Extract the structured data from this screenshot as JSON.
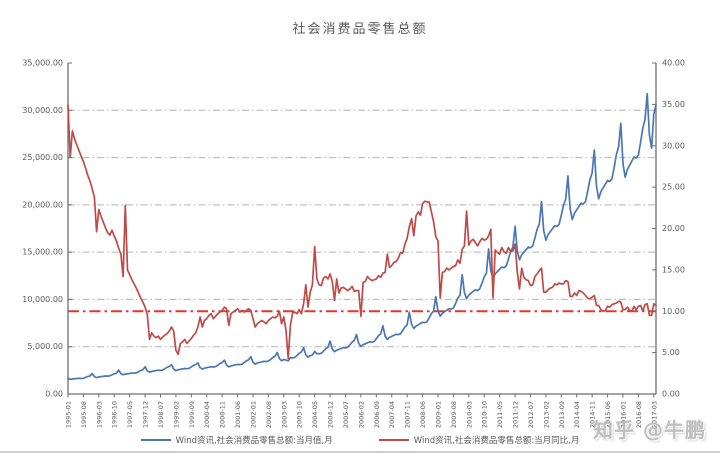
{
  "page": {
    "watermark": "知乎 @牛鹏"
  },
  "chart_data": {
    "type": "line",
    "title": "社会消费品零售总额",
    "x_start": "1995-01",
    "x_interval": "monthly",
    "x_tick_labels": [
      "1995-01",
      "1995-08",
      "1996-03",
      "1996-10",
      "1997-05",
      "1997-12",
      "1998-07",
      "1999-02",
      "1999-09",
      "2000-04",
      "2000-11",
      "2001-06",
      "2002-01",
      "2002-08",
      "2003-03",
      "2003-10",
      "2004-05",
      "2004-12",
      "2005-07",
      "2006-02",
      "2006-09",
      "2007-04",
      "2007-11",
      "2008-06",
      "2009-01",
      "2009-08",
      "2010-03",
      "2010-10",
      "2011-05",
      "2011-12",
      "2012-07",
      "2013-02",
      "2013-09",
      "2014-04",
      "2014-11",
      "2015-06",
      "2016-01",
      "2016-08",
      "2017-03"
    ],
    "left_axis": {
      "min": 0,
      "max": 35000,
      "step": 5000,
      "label_values": [
        "35,000.00",
        "30,000.00",
        "25,000.00",
        "20,000.00",
        "15,000.00",
        "10,000.00",
        "5,000.00",
        "0.00"
      ]
    },
    "right_axis": {
      "min": 0,
      "max": 40,
      "step": 5,
      "label_values": [
        "40.00",
        "35.00",
        "30.00",
        "25.00",
        "20.00",
        "15.00",
        "10.00",
        "5.00",
        "0.00"
      ]
    },
    "grid": "horizontal-dash-dot",
    "legend_position": "bottom",
    "reference_line": {
      "axis": "right",
      "value": 10,
      "color": "#e8322e",
      "style": "dash-dot"
    },
    "series": [
      {
        "name": "Wind资讯,社会消费品零售总额:当月值,月",
        "axis": "left",
        "color": "#4a77b4",
        "values": [
          1660,
          1545,
          1590,
          1615,
          1635,
          1655,
          1640,
          1665,
          1755,
          1860,
          1915,
          2170,
          1845,
          1735,
          1800,
          1840,
          1875,
          1905,
          1890,
          1915,
          2020,
          2135,
          2200,
          2530,
          2150,
          2025,
          2100,
          2140,
          2180,
          2215,
          2200,
          2230,
          2350,
          2480,
          2560,
          2880,
          2450,
          2305,
          2390,
          2435,
          2480,
          2520,
          2500,
          2535,
          2670,
          2820,
          2910,
          3090,
          2625,
          2470,
          2560,
          2610,
          2655,
          2700,
          2680,
          2715,
          2860,
          3020,
          3115,
          3290,
          2795,
          2630,
          2730,
          2780,
          2830,
          2875,
          2855,
          2895,
          3050,
          3220,
          3320,
          3580,
          3045,
          2865,
          2970,
          3025,
          3080,
          3130,
          3110,
          3150,
          3320,
          3505,
          3615,
          3950,
          3360,
          3160,
          3275,
          3340,
          3395,
          3455,
          3430,
          3475,
          3660,
          3865,
          3990,
          4400,
          3740,
          3520,
          3650,
          3600,
          3500,
          3850,
          3820,
          3870,
          4075,
          4305,
          4440,
          4880,
          4150,
          3905,
          4050,
          4125,
          4500,
          4270,
          4255,
          4310,
          4540,
          4795,
          4945,
          5590,
          4750,
          4470,
          4635,
          4720,
          4810,
          4895,
          4870,
          4935,
          5200,
          5490,
          5665,
          6290,
          5350,
          5030,
          5215,
          5310,
          5410,
          5505,
          5480,
          5550,
          5850,
          6175,
          6370,
          7210,
          6130,
          5770,
          5980,
          6090,
          6205,
          6315,
          6285,
          6365,
          6710,
          7085,
          7305,
          8660,
          7360,
          6930,
          7185,
          7315,
          7450,
          7585,
          7545,
          7645,
          8055,
          8505,
          8775,
          10300,
          8755,
          8240,
          8545,
          8700,
          8860,
          9020,
          8975,
          9090,
          9580,
          10115,
          10435,
          12610,
          10720,
          10090,
          10460,
          10655,
          10845,
          11040,
          10930,
          11130,
          11730,
          12385,
          12775,
          15330,
          13030,
          12265,
          12715,
          12945,
          13185,
          13420,
          13355,
          13530,
          14260,
          15055,
          15530,
          17740,
          15080,
          14190,
          14715,
          14980,
          15255,
          15530,
          15455,
          15655,
          16500,
          17420,
          17970,
          20330,
          17280,
          16265,
          16865,
          17170,
          17485,
          17800,
          17715,
          17945,
          18910,
          19965,
          20595,
          23060,
          19600,
          18450,
          19130,
          19475,
          19830,
          20185,
          20090,
          20355,
          21450,
          22645,
          23360,
          25800,
          21930,
          20640,
          21400,
          21790,
          22185,
          22580,
          22475,
          22770,
          23995,
          25330,
          26130,
          28635,
          24340,
          22910,
          23755,
          24185,
          24625,
          25065,
          24945,
          25275,
          26635,
          28120,
          29005,
          31757,
          27400,
          26000,
          29600,
          30600
        ]
      },
      {
        "name": "Wind资讯,社会消费品零售总额:当月同比,月",
        "axis": "right",
        "color": "#bf4b47",
        "values": [
          34.9,
          28.6,
          31.8,
          30.8,
          30.1,
          29.4,
          28.7,
          28.1,
          27.3,
          26.4,
          25.7,
          24.8,
          23.8,
          19.6,
          22.3,
          21.5,
          20.8,
          20.1,
          19.5,
          19.2,
          19.8,
          19.1,
          18.5,
          17.6,
          16.9,
          14.2,
          22.8,
          15.0,
          14.4,
          13.8,
          13.3,
          12.8,
          12.2,
          11.6,
          11.1,
          10.5,
          9.6,
          6.6,
          7.4,
          7.0,
          6.8,
          7.0,
          6.6,
          6.9,
          7.1,
          7.3,
          7.6,
          8.1,
          7.6,
          5.3,
          4.8,
          6.1,
          6.3,
          6.6,
          6.1,
          6.4,
          6.7,
          7.1,
          7.4,
          8.1,
          9.3,
          8.1,
          8.9,
          9.1,
          9.5,
          9.7,
          9.1,
          9.4,
          9.7,
          9.9,
          10.1,
          10.5,
          10.3,
          8.3,
          9.7,
          9.9,
          10.1,
          10.3,
          9.9,
          10.1,
          9.9,
          10.1,
          10.3,
          10.1,
          9.1,
          8.1,
          8.5,
          8.7,
          8.9,
          8.7,
          8.5,
          8.9,
          9.1,
          9.3,
          9.2,
          9.4,
          10.0,
          8.5,
          9.3,
          7.7,
          4.3,
          8.3,
          9.8,
          9.9,
          9.7,
          10.2,
          9.7,
          10.9,
          13.2,
          10.5,
          12.3,
          13.2,
          17.8,
          13.9,
          13.2,
          13.1,
          14.0,
          14.2,
          13.9,
          14.5,
          13.6,
          11.3,
          13.9,
          12.2,
          12.8,
          12.9,
          12.7,
          12.5,
          12.7,
          13.0,
          12.4,
          12.5,
          12.5,
          9.4,
          13.5,
          13.6,
          14.2,
          13.9,
          13.7,
          13.8,
          13.9,
          14.3,
          14.1,
          14.6,
          14.7,
          16.9,
          15.3,
          15.5,
          15.9,
          16.0,
          16.4,
          17.1,
          17.0,
          18.1,
          18.8,
          20.2,
          21.2,
          19.1,
          21.5,
          22.0,
          21.6,
          23.0,
          23.3,
          23.2,
          23.2,
          22.0,
          20.8,
          19.0,
          18.5,
          11.6,
          14.7,
          14.8,
          15.2,
          15.0,
          15.2,
          15.4,
          15.5,
          16.2,
          15.8,
          17.5,
          17.9,
          22.1,
          18.0,
          18.5,
          18.7,
          18.3,
          17.9,
          18.4,
          18.8,
          18.6,
          18.7,
          19.1,
          19.9,
          11.6,
          17.4,
          17.1,
          16.9,
          17.7,
          17.2,
          17.0,
          17.7,
          17.2,
          17.3,
          18.1,
          14.7,
          12.7,
          15.2,
          14.1,
          13.8,
          13.7,
          13.1,
          13.2,
          14.2,
          14.5,
          14.9,
          15.2,
          12.3,
          12.3,
          12.6,
          12.8,
          12.9,
          13.3,
          13.2,
          13.4,
          13.3,
          13.3,
          13.7,
          13.6,
          11.8,
          11.8,
          12.2,
          11.9,
          12.5,
          12.4,
          12.2,
          11.9,
          11.6,
          11.5,
          11.7,
          11.9,
          10.7,
          10.7,
          10.2,
          10.0,
          10.1,
          10.6,
          10.5,
          10.8,
          10.9,
          11.0,
          11.2,
          11.1,
          10.2,
          10.2,
          10.5,
          10.1,
          10.0,
          10.6,
          10.2,
          10.6,
          10.7,
          10.0,
          10.8,
          10.9,
          9.5,
          9.5,
          10.9,
          10.7
        ]
      }
    ]
  }
}
